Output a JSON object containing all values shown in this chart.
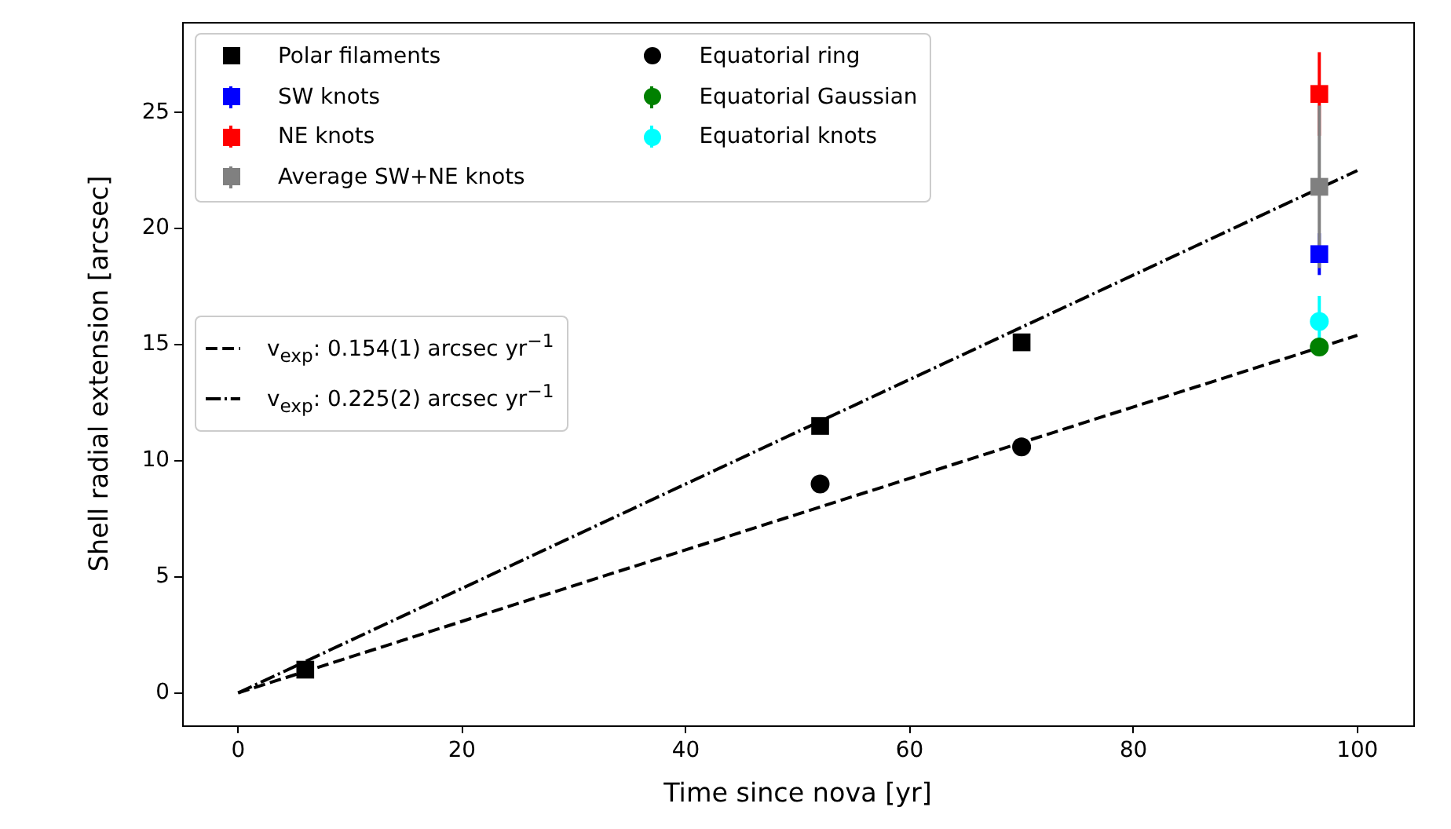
{
  "chart_data": {
    "type": "scatter",
    "xlabel": "Time since nova [yr]",
    "ylabel": "Shell radial extension [arcsec]",
    "xlim": [
      -5,
      105
    ],
    "xticks": [
      0,
      20,
      40,
      60,
      80,
      100
    ],
    "ylim": [
      -1.4,
      28.9
    ],
    "yticks": [
      0,
      5,
      10,
      15,
      20,
      25
    ],
    "grid": false,
    "legend": "top left",
    "series": [
      {
        "name": "Polar filaments",
        "color": "#000000",
        "marker": "square",
        "x": [
          6,
          52,
          70
        ],
        "values": [
          1.0,
          11.5,
          15.1
        ]
      },
      {
        "name": "SW knots",
        "color": "#0000ff",
        "marker": "square",
        "x": [
          96.6
        ],
        "values": [
          18.9
        ],
        "errors": [
          0.9
        ]
      },
      {
        "name": "NE knots",
        "color": "#ff0000",
        "marker": "square",
        "x": [
          96.6
        ],
        "values": [
          25.8
        ],
        "errors": [
          1.8
        ]
      },
      {
        "name": "Average SW+NE knots",
        "color": "#808080",
        "marker": "square",
        "x": [
          96.6
        ],
        "values": [
          21.8
        ],
        "errors": [
          3.5
        ]
      },
      {
        "name": "Equatorial ring",
        "color": "#000000",
        "marker": "circle",
        "x": [
          52,
          70
        ],
        "values": [
          9.0,
          10.6
        ]
      },
      {
        "name": "Equatorial Gaussian",
        "color": "#008000",
        "marker": "circle",
        "x": [
          96.6
        ],
        "values": [
          14.9
        ],
        "errors": [
          0.3
        ]
      },
      {
        "name": "Equatorial knots",
        "color": "#00ffff",
        "marker": "circle",
        "x": [
          96.6
        ],
        "values": [
          16.0
        ],
        "errors": [
          1.1
        ]
      },
      {
        "name": "v$_{exp}$: 0.154(1) arcsec yr$^{−1}$",
        "type": "line",
        "color": "#000000",
        "marker": "none",
        "line_style": "dashed",
        "x": [
          0,
          100
        ],
        "values": [
          0,
          15.4
        ]
      },
      {
        "name": "v$_{exp}$: 0.225(2) arcsec yr$^{−1}$",
        "type": "line",
        "color": "#000000",
        "marker": "none",
        "line_style": "dashdot",
        "x": [
          0,
          100
        ],
        "values": [
          0,
          22.5
        ]
      }
    ]
  }
}
